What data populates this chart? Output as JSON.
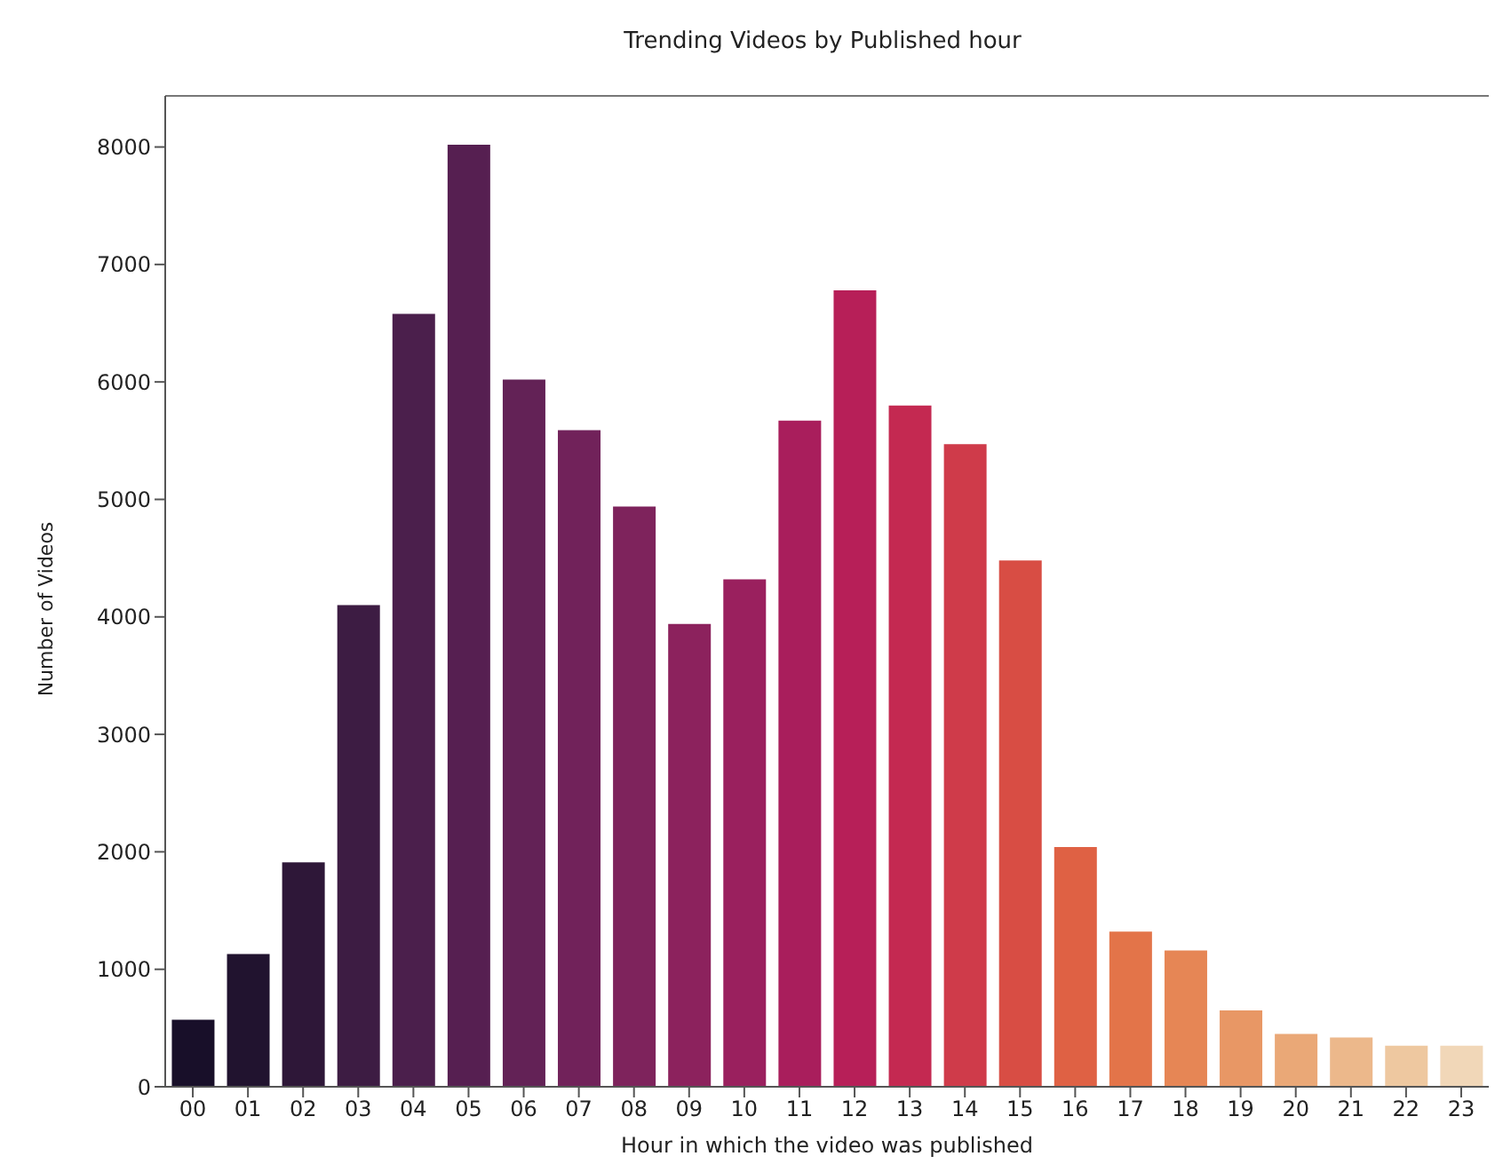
{
  "chart_data": {
    "type": "bar",
    "title": "Trending Videos by Published hour",
    "xlabel": "Hour in which the video was published",
    "ylabel": "Number of Videos",
    "categories": [
      "00",
      "01",
      "02",
      "03",
      "04",
      "05",
      "06",
      "07",
      "08",
      "09",
      "10",
      "11",
      "12",
      "13",
      "14",
      "15",
      "16",
      "17",
      "18",
      "19",
      "20",
      "21",
      "22",
      "23"
    ],
    "values": [
      570,
      1130,
      1910,
      4100,
      6580,
      8020,
      6020,
      5590,
      4940,
      3940,
      4320,
      5670,
      6780,
      5800,
      5470,
      4480,
      2040,
      1320,
      1160,
      650,
      450,
      420,
      350,
      350
    ],
    "colors": [
      "#180f29",
      "#21132f",
      "#2e1738",
      "#3d1c43",
      "#4b1f4c",
      "#561f51",
      "#632256",
      "#71225a",
      "#7e235c",
      "#8c225d",
      "#9a205e",
      "#a91e5c",
      "#b71f58",
      "#c42951",
      "#cf3b4a",
      "#d84d44",
      "#df6144",
      "#e37449",
      "#e68655",
      "#e89765",
      "#eaa877",
      "#ecb88b",
      "#eec8a0",
      "#f1d7b8"
    ],
    "ylim": [
      0,
      8435
    ],
    "yticks": [
      0,
      1000,
      2000,
      3000,
      4000,
      5000,
      6000,
      7000,
      8000
    ]
  }
}
